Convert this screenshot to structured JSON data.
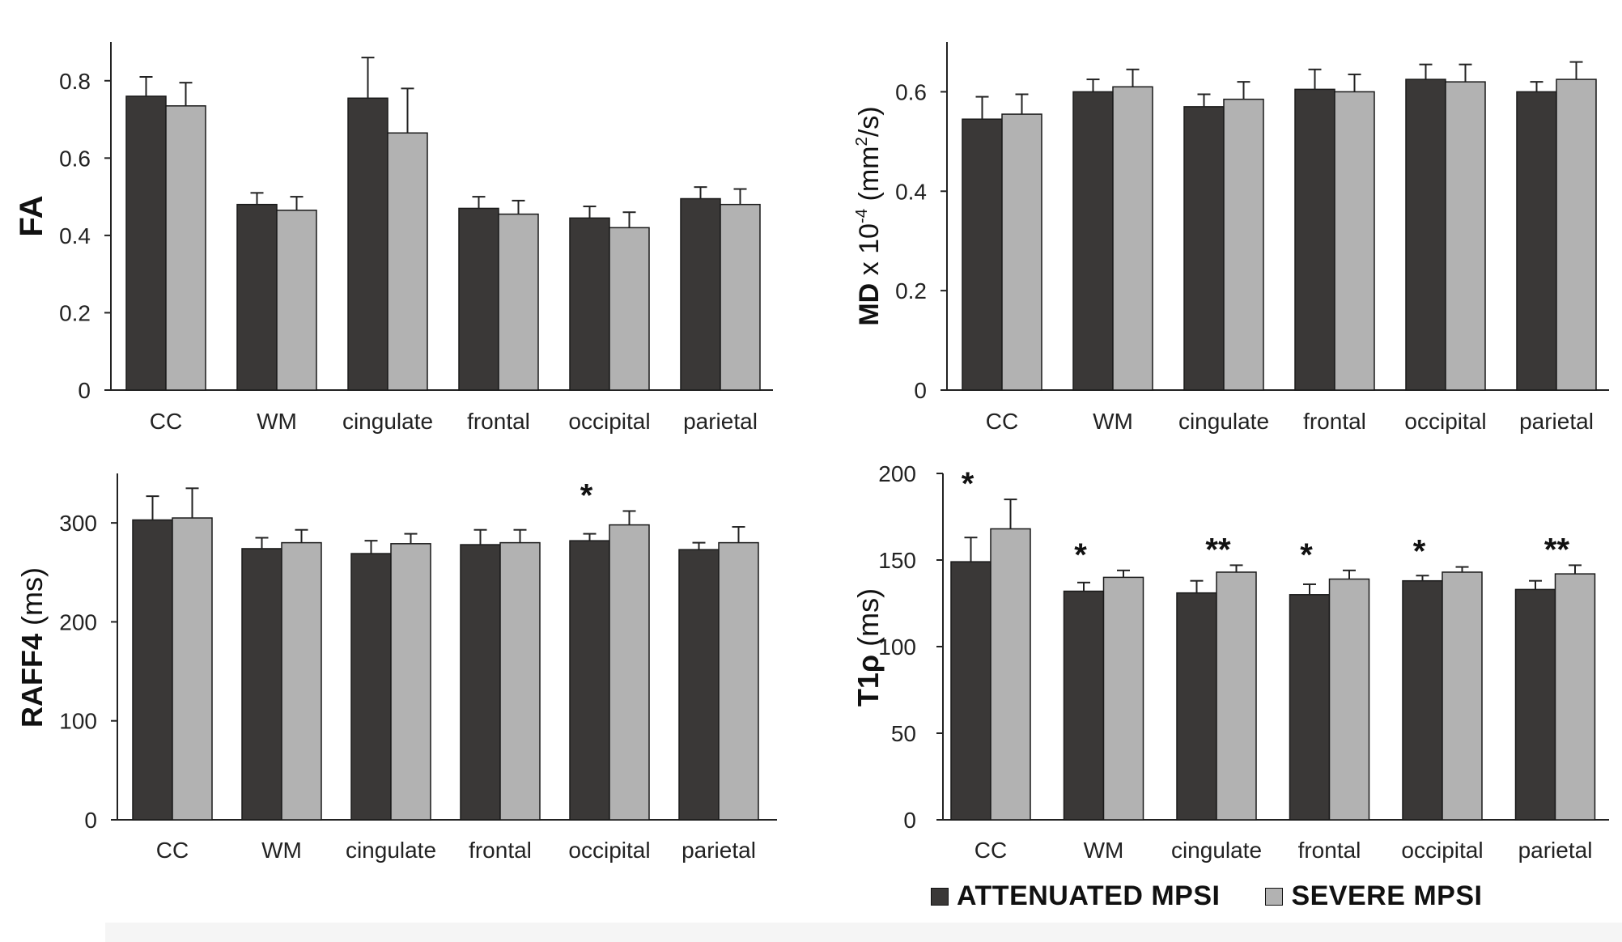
{
  "colors": {
    "attenuated": "#3a3837",
    "severe": "#b2b2b2",
    "outline": "#1a1a1a",
    "axis": "#222222"
  },
  "legend": {
    "attenuated_label": "ATTENUATED MPSI",
    "severe_label": "SEVERE MPSI"
  },
  "chart_data": [
    {
      "type": "bar",
      "title": "",
      "ylabel_bold": "FA",
      "ylabel_rest": "",
      "ylim": [
        0,
        0.9
      ],
      "yticks": [
        "0",
        "0.2",
        "0.4",
        "0.6",
        "0.8"
      ],
      "ytick_values": [
        0,
        0.2,
        0.4,
        0.6,
        0.8
      ],
      "categories": [
        "CC",
        "WM",
        "cingulate",
        "frontal",
        "occipital",
        "parietal"
      ],
      "series": [
        {
          "name": "ATTENUATED MPSI",
          "values": [
            0.76,
            0.48,
            0.755,
            0.47,
            0.445,
            0.495
          ],
          "errors": [
            0.05,
            0.03,
            0.105,
            0.03,
            0.03,
            0.03
          ]
        },
        {
          "name": "SEVERE MPSI",
          "values": [
            0.735,
            0.465,
            0.665,
            0.455,
            0.42,
            0.48
          ],
          "errors": [
            0.06,
            0.035,
            0.115,
            0.035,
            0.04,
            0.04
          ]
        }
      ],
      "annotations": [
        "",
        "",
        "",
        "",
        "",
        ""
      ]
    },
    {
      "type": "bar",
      "title": "",
      "ylabel_bold": "MD",
      "ylabel_rest": " x 10",
      "ylabel_sup": "-4",
      "ylabel_tail": " (mm",
      "ylabel_sup2": "2",
      "ylabel_end": "/s)",
      "ylim": [
        0,
        0.7
      ],
      "yticks": [
        "0",
        "0.2",
        "0.4",
        "0.6"
      ],
      "ytick_values": [
        0,
        0.2,
        0.4,
        0.6
      ],
      "categories": [
        "CC",
        "WM",
        "cingulate",
        "frontal",
        "occipital",
        "parietal"
      ],
      "series": [
        {
          "name": "ATTENUATED MPSI",
          "values": [
            0.545,
            0.6,
            0.57,
            0.605,
            0.625,
            0.6
          ],
          "errors": [
            0.045,
            0.025,
            0.025,
            0.04,
            0.03,
            0.02
          ]
        },
        {
          "name": "SEVERE MPSI",
          "values": [
            0.555,
            0.61,
            0.585,
            0.6,
            0.62,
            0.625
          ],
          "errors": [
            0.04,
            0.035,
            0.035,
            0.035,
            0.035,
            0.035
          ]
        }
      ],
      "annotations": [
        "",
        "",
        "",
        "",
        "",
        ""
      ]
    },
    {
      "type": "bar",
      "title": "",
      "ylabel_bold": "RAFF4",
      "ylabel_rest": " (ms)",
      "ylim": [
        0,
        350
      ],
      "yticks": [
        "0",
        "100",
        "200",
        "300"
      ],
      "ytick_values": [
        0,
        100,
        200,
        300
      ],
      "categories": [
        "CC",
        "WM",
        "cingulate",
        "frontal",
        "occipital",
        "parietal"
      ],
      "series": [
        {
          "name": "ATTENUATED MPSI",
          "values": [
            303,
            274,
            269,
            278,
            282,
            273
          ],
          "errors": [
            24,
            11,
            13,
            15,
            7,
            7
          ]
        },
        {
          "name": "SEVERE MPSI",
          "values": [
            305,
            280,
            279,
            280,
            298,
            280
          ],
          "errors": [
            30,
            13,
            10,
            13,
            14,
            16
          ]
        }
      ],
      "annotations": [
        "",
        "",
        "",
        "",
        "*",
        ""
      ]
    },
    {
      "type": "bar",
      "title": "",
      "ylabel_bold": "T1ρ",
      "ylabel_rest": "  (ms)",
      "ylim": [
        0,
        200
      ],
      "yticks": [
        "0",
        "50",
        "100",
        "150",
        "200"
      ],
      "ytick_values": [
        0,
        50,
        100,
        150,
        200
      ],
      "categories": [
        "CC",
        "WM",
        "cingulate",
        "frontal",
        "occipital",
        "parietal"
      ],
      "series": [
        {
          "name": "ATTENUATED MPSI",
          "values": [
            149,
            132,
            131,
            130,
            138,
            133
          ],
          "errors": [
            14,
            5,
            7,
            6,
            3,
            5
          ]
        },
        {
          "name": "SEVERE MPSI",
          "values": [
            168,
            140,
            143,
            139,
            143,
            142
          ],
          "errors": [
            17,
            4,
            4,
            5,
            3,
            5
          ]
        }
      ],
      "annotations": [
        "*",
        "*",
        "**",
        "*",
        "*",
        "**"
      ]
    }
  ]
}
